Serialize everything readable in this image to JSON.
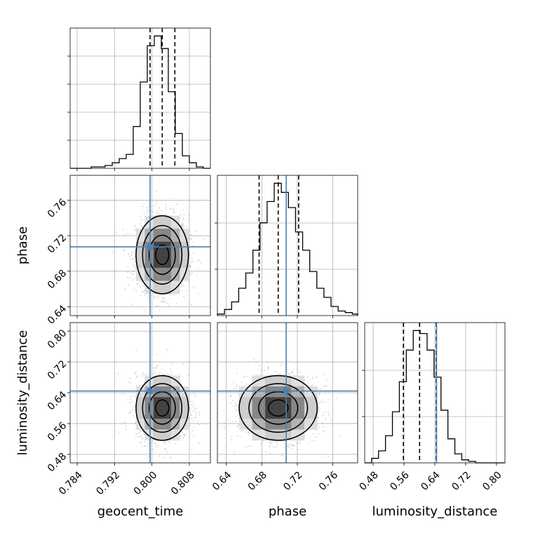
{
  "chart_data": {
    "type": "corner",
    "parameters": [
      "geocent_time",
      "phase",
      "luminosity_distance"
    ],
    "ranges": {
      "geocent_time": [
        0.7825,
        0.8125
      ],
      "phase": [
        0.63,
        0.788
      ],
      "luminosity_distance": [
        0.458,
        0.822
      ]
    },
    "ticks": {
      "geocent_time": [
        "0.784",
        "0.792",
        "0.800",
        "0.808"
      ],
      "phase": [
        "0.64",
        "0.68",
        "0.72",
        "0.76"
      ],
      "luminosity_distance": [
        "0.48",
        "0.56",
        "0.64",
        "0.72",
        "0.80"
      ]
    },
    "medians": {
      "geocent_time": 0.8022,
      "phase": 0.6985,
      "luminosity_distance": 0.6005
    },
    "quantiles_16_84": {
      "geocent_time": [
        0.7996,
        0.8049
      ],
      "phase": [
        0.677,
        0.7215
      ],
      "luminosity_distance": [
        0.5585,
        0.6435
      ]
    },
    "truths": {
      "geocent_time": 0.7996,
      "phase": 0.7075,
      "luminosity_distance": 0.6445
    },
    "histograms": {
      "geocent_time": {
        "edges": [
          0.7825,
          0.784,
          0.7855,
          0.787,
          0.7885,
          0.79,
          0.7915,
          0.793,
          0.7945,
          0.796,
          0.7975,
          0.799,
          0.8005,
          0.802,
          0.8035,
          0.805,
          0.8065,
          0.808,
          0.8095,
          0.811,
          0.8125
        ],
        "counts": [
          0,
          0,
          0,
          1,
          1,
          2,
          4,
          7,
          10,
          30,
          62,
          88,
          95,
          86,
          55,
          25,
          9,
          4,
          1,
          0
        ]
      },
      "phase": {
        "edges": [
          0.63,
          0.638,
          0.646,
          0.654,
          0.662,
          0.67,
          0.678,
          0.686,
          0.694,
          0.702,
          0.71,
          0.718,
          0.726,
          0.734,
          0.742,
          0.75,
          0.758,
          0.766,
          0.774,
          0.782,
          0.788
        ],
        "counts": [
          1,
          4,
          9,
          18,
          28,
          43,
          61,
          75,
          87,
          81,
          71,
          55,
          43,
          29,
          18,
          12,
          6,
          3,
          2,
          1
        ]
      },
      "luminosity_distance": {
        "edges": [
          0.458,
          0.476,
          0.494,
          0.512,
          0.53,
          0.548,
          0.566,
          0.584,
          0.602,
          0.62,
          0.638,
          0.656,
          0.674,
          0.692,
          0.71,
          0.728,
          0.746,
          0.764,
          0.782,
          0.8,
          0.822
        ],
        "counts": [
          0,
          3,
          8,
          18,
          34,
          54,
          75,
          88,
          86,
          75,
          57,
          35,
          16,
          6,
          2,
          1,
          0,
          0,
          0,
          0
        ]
      }
    },
    "scatter_stats": {
      "geocent_time": {
        "mean": 0.8022,
        "sd": 0.0028
      },
      "phase": {
        "mean": 0.6985,
        "sd": 0.022
      },
      "luminosity_distance": {
        "mean": 0.6005,
        "sd": 0.042
      }
    },
    "grid": true
  }
}
